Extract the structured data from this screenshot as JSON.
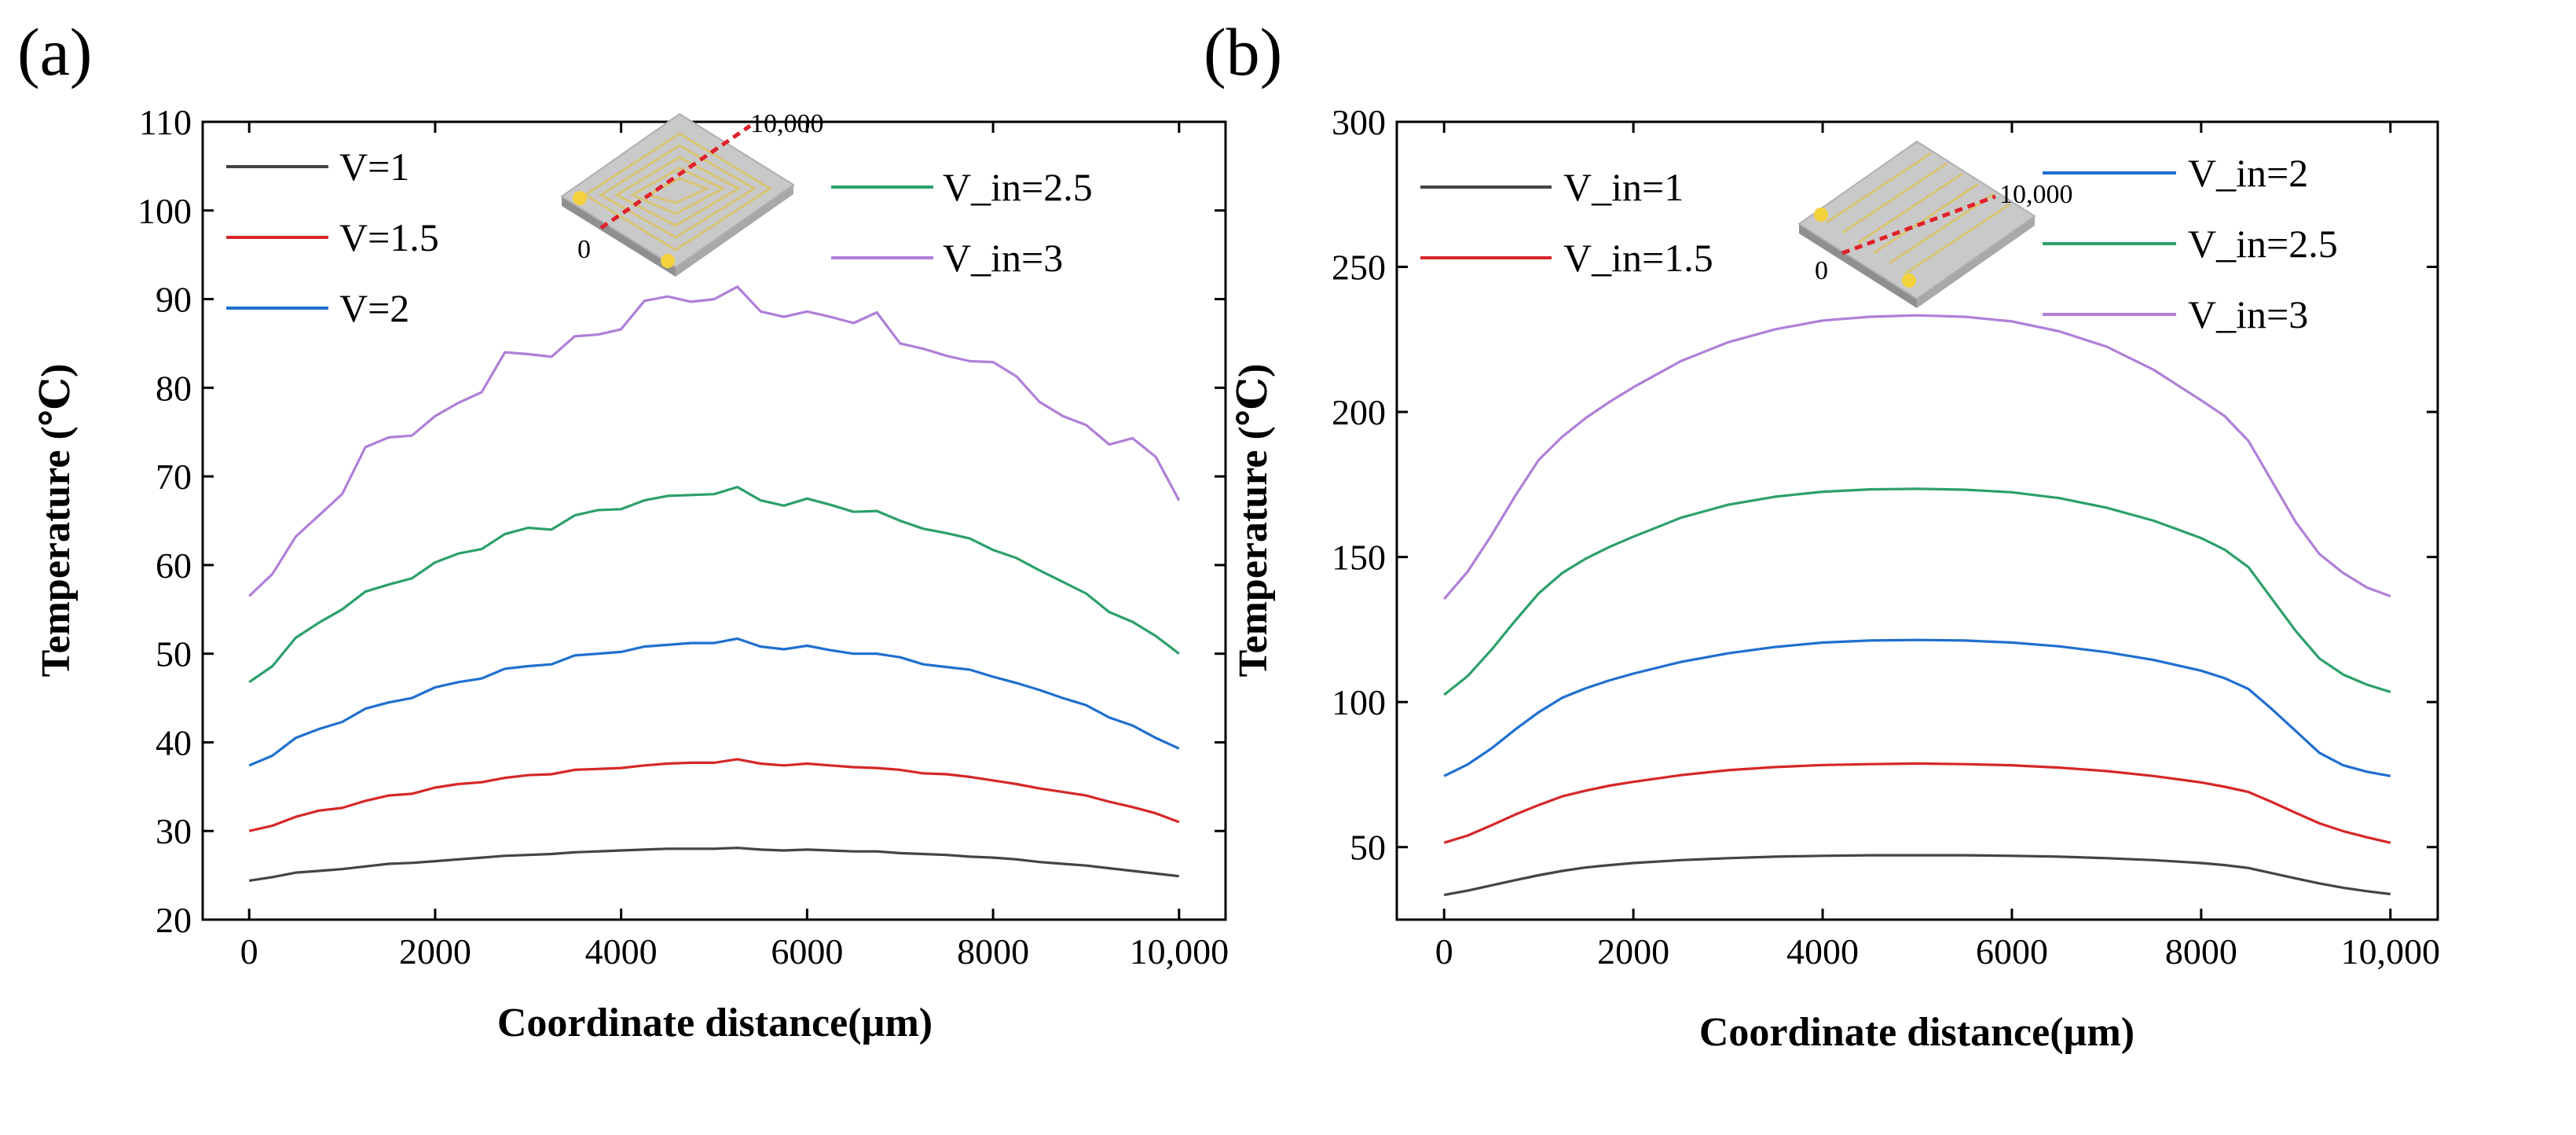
{
  "figure": {
    "panels": [
      "(a)",
      "(b)"
    ]
  },
  "chart_data": [
    {
      "type": "line",
      "panel_label": "(a)",
      "xlabel": "Coordinate distance(µm)",
      "ylabel": "Temperature (℃)",
      "xlim": [
        -500,
        10500
      ],
      "ylim": [
        20,
        110
      ],
      "xticks": [
        0,
        2000,
        4000,
        6000,
        8000,
        10000
      ],
      "xtick_labels": [
        "0",
        "2000",
        "4000",
        "6000",
        "8000",
        "10,000"
      ],
      "yticks": [
        20,
        30,
        40,
        50,
        60,
        70,
        80,
        90,
        100,
        110
      ],
      "ytick_labels": [
        "20",
        "30",
        "40",
        "50",
        "60",
        "70",
        "80",
        "90",
        "100",
        "110"
      ],
      "inset": {
        "start_label": "0",
        "end_label": "10,000"
      },
      "x": [
        0,
        250,
        500,
        750,
        1000,
        1250,
        1500,
        1750,
        2000,
        2250,
        2500,
        2750,
        3000,
        3250,
        3500,
        3750,
        4000,
        4250,
        4500,
        4750,
        5000,
        5250,
        5500,
        5750,
        6000,
        6250,
        6500,
        6750,
        7000,
        7250,
        7500,
        7750,
        8000,
        8250,
        8500,
        8750,
        9000,
        9250,
        9500,
        9750,
        10000
      ],
      "series": [
        {
          "name": "V=1",
          "color": "#444444",
          "values": [
            24.4,
            24.8,
            25.3,
            25.5,
            25.7,
            26.0,
            26.3,
            26.4,
            26.6,
            26.8,
            27.0,
            27.2,
            27.3,
            27.4,
            27.6,
            27.7,
            27.8,
            27.9,
            28.0,
            28.0,
            28.0,
            28.1,
            27.9,
            27.8,
            27.9,
            27.8,
            27.7,
            27.7,
            27.5,
            27.4,
            27.3,
            27.1,
            27.0,
            26.8,
            26.5,
            26.3,
            26.1,
            25.8,
            25.5,
            25.2,
            24.9
          ]
        },
        {
          "name": "V=1.5",
          "color": "#d62728",
          "values": [
            30.0,
            30.6,
            31.6,
            32.3,
            32.6,
            33.4,
            34.0,
            34.2,
            34.9,
            35.3,
            35.5,
            36.0,
            36.3,
            36.4,
            36.9,
            37.0,
            37.1,
            37.4,
            37.6,
            37.7,
            37.7,
            38.1,
            37.6,
            37.4,
            37.6,
            37.4,
            37.2,
            37.1,
            36.9,
            36.5,
            36.4,
            36.1,
            35.7,
            35.3,
            34.8,
            34.4,
            34.0,
            33.3,
            32.7,
            32.0,
            31.0
          ]
        },
        {
          "name": "V=2",
          "color": "#1f6fcf",
          "values": [
            37.4,
            38.5,
            40.5,
            41.5,
            42.3,
            43.8,
            44.5,
            45.0,
            46.2,
            46.8,
            47.2,
            48.3,
            48.6,
            48.8,
            49.8,
            50.0,
            50.2,
            50.8,
            51.0,
            51.2,
            51.2,
            51.7,
            50.8,
            50.5,
            50.9,
            50.4,
            50.0,
            50.0,
            49.6,
            48.8,
            48.5,
            48.2,
            47.4,
            46.7,
            45.9,
            45.0,
            44.2,
            42.8,
            41.9,
            40.5,
            39.3
          ]
        },
        {
          "name": "V_in=2.5",
          "color": "#2ca06a",
          "values": [
            46.8,
            48.6,
            51.8,
            53.5,
            55.0,
            57.0,
            57.8,
            58.5,
            60.3,
            61.3,
            61.8,
            63.5,
            64.2,
            64.0,
            65.6,
            66.2,
            66.3,
            67.3,
            67.8,
            67.9,
            68.0,
            68.8,
            67.3,
            66.7,
            67.5,
            66.8,
            66.0,
            66.1,
            65.0,
            64.1,
            63.6,
            63.0,
            61.7,
            60.8,
            59.4,
            58.1,
            56.8,
            54.7,
            53.6,
            52.0,
            50.0
          ]
        },
        {
          "name": "V_in=3",
          "color": "#b07fd8",
          "values": [
            56.5,
            59.0,
            63.2,
            65.6,
            68.0,
            73.3,
            74.4,
            74.6,
            76.8,
            78.3,
            79.5,
            84.0,
            83.8,
            83.5,
            85.8,
            86.0,
            86.6,
            89.8,
            90.3,
            89.7,
            90.0,
            91.4,
            88.6,
            88.0,
            88.6,
            88.0,
            87.3,
            88.5,
            85.0,
            84.4,
            83.6,
            83.0,
            82.9,
            81.3,
            78.4,
            76.8,
            75.8,
            73.6,
            74.3,
            72.2,
            67.3
          ]
        }
      ]
    },
    {
      "type": "line",
      "panel_label": "(b)",
      "xlabel": "Coordinate distance(µm)",
      "ylabel": "Temperature (℃)",
      "xlim": [
        -500,
        10500
      ],
      "ylim": [
        25,
        300
      ],
      "xticks": [
        0,
        2000,
        4000,
        6000,
        8000,
        10000
      ],
      "xtick_labels": [
        "0",
        "2000",
        "4000",
        "6000",
        "8000",
        "10,000"
      ],
      "yticks": [
        50,
        100,
        150,
        200,
        250,
        300
      ],
      "ytick_labels": [
        "50",
        "100",
        "150",
        "200",
        "250",
        "300"
      ],
      "inset": {
        "start_label": "0",
        "end_label": "10,000"
      },
      "x": [
        0,
        250,
        500,
        750,
        1000,
        1250,
        1500,
        1750,
        2000,
        2500,
        3000,
        3500,
        4000,
        4500,
        5000,
        5500,
        6000,
        6500,
        7000,
        7500,
        8000,
        8250,
        8500,
        8750,
        9000,
        9250,
        9500,
        9750,
        10000
      ],
      "series": [
        {
          "name": "V_in=1",
          "color": "#444444",
          "values": [
            33.5,
            35.0,
            36.8,
            38.6,
            40.3,
            41.8,
            43.0,
            43.8,
            44.5,
            45.5,
            46.2,
            46.7,
            47.0,
            47.2,
            47.2,
            47.2,
            47.0,
            46.7,
            46.2,
            45.5,
            44.5,
            43.8,
            42.8,
            41.0,
            39.2,
            37.5,
            36.0,
            34.8,
            33.8
          ]
        },
        {
          "name": "V_in=1.5",
          "color": "#d62728",
          "values": [
            51.5,
            54.0,
            57.5,
            61.2,
            64.5,
            67.5,
            69.5,
            71.2,
            72.5,
            74.8,
            76.5,
            77.6,
            78.3,
            78.6,
            78.8,
            78.6,
            78.2,
            77.4,
            76.2,
            74.5,
            72.3,
            70.8,
            69.0,
            65.5,
            61.8,
            58.2,
            55.5,
            53.4,
            51.5
          ]
        },
        {
          "name": "V_in=2",
          "color": "#1f6fcf",
          "values": [
            74.5,
            78.5,
            84.0,
            90.5,
            96.5,
            101.5,
            104.8,
            107.5,
            109.8,
            113.8,
            116.8,
            119.0,
            120.5,
            121.2,
            121.4,
            121.2,
            120.5,
            119.2,
            117.2,
            114.5,
            110.8,
            108.2,
            104.5,
            97.5,
            90.0,
            82.5,
            78.2,
            76.0,
            74.5
          ]
        },
        {
          "name": "V_in=2.5",
          "color": "#2ca06a",
          "values": [
            102.5,
            109.0,
            118.0,
            128.0,
            137.5,
            144.5,
            149.5,
            153.5,
            157.0,
            163.5,
            168.0,
            170.8,
            172.5,
            173.3,
            173.5,
            173.2,
            172.3,
            170.3,
            167.0,
            162.5,
            156.5,
            152.5,
            146.5,
            135.5,
            124.5,
            115.0,
            109.5,
            106.0,
            103.5
          ]
        },
        {
          "name": "V_in=3",
          "color": "#b07fd8",
          "values": [
            135.5,
            145.0,
            157.5,
            171.0,
            183.5,
            191.5,
            198.0,
            203.5,
            208.5,
            217.5,
            224.0,
            228.5,
            231.5,
            232.8,
            233.3,
            232.8,
            231.2,
            227.8,
            222.5,
            214.5,
            204.0,
            198.5,
            190.0,
            176.0,
            162.0,
            151.0,
            144.5,
            139.5,
            136.5
          ]
        }
      ]
    }
  ]
}
